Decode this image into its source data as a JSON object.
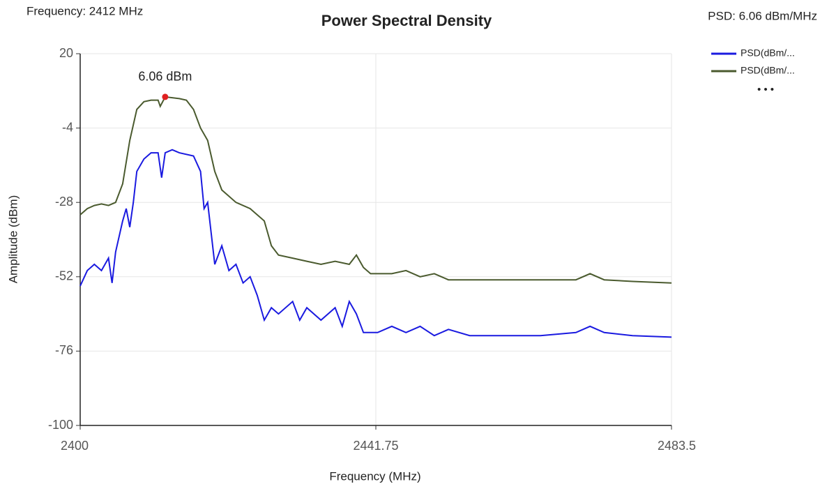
{
  "chart_data": {
    "type": "line",
    "title": "Power Spectral Density",
    "header_left": "Frequency: 2412 MHz",
    "header_right": "PSD: 6.06 dBm/MHz",
    "xlabel": "Frequency (MHz)",
    "ylabel": "Amplitude (dBm)",
    "annotation": "6.06 dBm",
    "legend_more": "• • •",
    "xlim": [
      2400,
      2483.5
    ],
    "xticks": [
      2400,
      2441.75,
      2483.5
    ],
    "ylim": [
      -100,
      20
    ],
    "yticks": [
      20,
      -4,
      -28,
      -52,
      -76,
      -100
    ],
    "grid": true,
    "legend": "top-right",
    "series": [
      {
        "name": "PSD(dBm/...",
        "color": "#1a1ae0",
        "x": [
          2400,
          2401,
          2402,
          2403,
          2404,
          2404.5,
          2405,
          2406,
          2406.5,
          2407,
          2407.5,
          2408,
          2409,
          2410,
          2411,
          2411.5,
          2412,
          2413,
          2414,
          2416,
          2417,
          2417.5,
          2418,
          2418.5,
          2419,
          2420,
          2421,
          2422,
          2423,
          2424,
          2425,
          2426,
          2427,
          2428,
          2430,
          2431,
          2432,
          2434,
          2436,
          2437,
          2438,
          2439,
          2440,
          2442,
          2444,
          2446,
          2448,
          2450,
          2452,
          2455,
          2460,
          2465,
          2470,
          2472,
          2474,
          2478,
          2483.5
        ],
        "values": [
          -55,
          -50,
          -48,
          -50,
          -46,
          -54,
          -44,
          -34,
          -30,
          -36,
          -28,
          -18,
          -14,
          -12,
          -12,
          -20,
          -12,
          -11,
          -12,
          -13,
          -18,
          -30,
          -28,
          -38,
          -48,
          -42,
          -50,
          -48,
          -54,
          -52,
          -58,
          -66,
          -62,
          -64,
          -60,
          -66,
          -62,
          -66,
          -62,
          -68,
          -60,
          -64,
          -70,
          -70,
          -68,
          -70,
          -68,
          -71,
          -69,
          -71,
          -71,
          -71,
          -70,
          -68,
          -70,
          -71,
          -71.5
        ]
      },
      {
        "name": "PSD(dBm/...",
        "color": "#4a5a2e",
        "x": [
          2400,
          2401,
          2402,
          2403,
          2404,
          2405,
          2406,
          2407,
          2408,
          2409,
          2410,
          2411,
          2411.3,
          2412,
          2413,
          2414,
          2415,
          2416,
          2417,
          2418,
          2419,
          2420,
          2422,
          2424,
          2426,
          2427,
          2428,
          2430,
          2432,
          2434,
          2436,
          2438,
          2439,
          2440,
          2441,
          2444,
          2446,
          2448,
          2450,
          2452,
          2456,
          2460,
          2465,
          2470,
          2472,
          2474,
          2478,
          2483.5
        ],
        "values": [
          -32,
          -30,
          -29,
          -28.5,
          -29,
          -28,
          -22,
          -8,
          2,
          4.5,
          5,
          5,
          3,
          6.06,
          5.8,
          5.5,
          5,
          2,
          -4,
          -8,
          -18,
          -24,
          -28,
          -30,
          -34,
          -42,
          -45,
          -46,
          -47,
          -48,
          -47,
          -48,
          -45,
          -49,
          -51,
          -51,
          -50,
          -52,
          -51,
          -53,
          -53,
          -53,
          -53,
          -53,
          -51,
          -53,
          -53.5,
          -54
        ]
      }
    ],
    "peak": {
      "series": 1,
      "index": 13
    }
  }
}
